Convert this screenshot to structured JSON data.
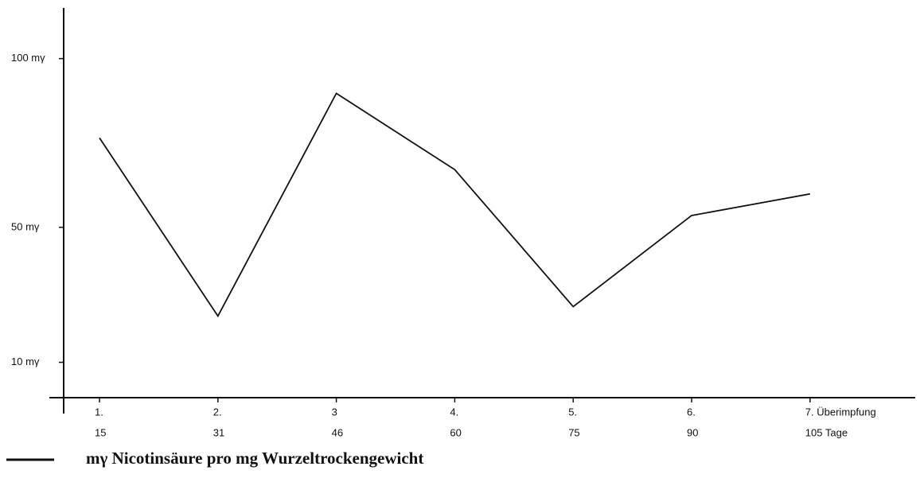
{
  "chart_data": {
    "type": "line",
    "categories": [
      "1.",
      "2.",
      "3",
      "4.",
      "5.",
      "6.",
      "7. Überimpfung"
    ],
    "days": [
      "15",
      "31",
      "46",
      "60",
      "75",
      "90",
      "105 Tage"
    ],
    "series": [
      {
        "name": "mγ Nicotinsäure pro mg Wurzeltrockengewicht",
        "color": "#111111",
        "values": [
          76.5,
          23.7,
          89.7,
          67.1,
          26.5,
          53.5,
          59.9
        ]
      }
    ],
    "ylim": [
      0,
      115
    ],
    "yticks": [
      {
        "value": 10,
        "label": "10 mγ"
      },
      {
        "value": 50,
        "label": "50 mγ"
      },
      {
        "value": 100,
        "label": "100 mγ"
      }
    ],
    "grid": false,
    "legend": "bottom-left"
  }
}
